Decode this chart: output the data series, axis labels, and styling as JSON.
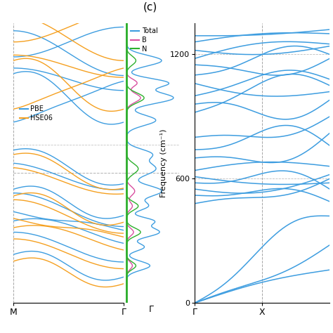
{
  "title_c": "(c)",
  "band_color_pbe": "#3d9de0",
  "band_color_hse": "#f5a020",
  "dos_total_color": "#3d9de0",
  "dos_B_color": "#d94fa0",
  "dos_N_color": "#2db02d",
  "phonon_color": "#3d9de0",
  "legend_labels": [
    "Total",
    "B",
    "N"
  ],
  "pbe_label": "PBE",
  "hse_label": "HSE06",
  "ylabel_phonon": "Frequency (cm⁻¹)",
  "band_xticks": [
    "M",
    "Γ"
  ],
  "phonon_xtick_labels": [
    "Γ",
    "X"
  ],
  "ylim_band": [
    -3.5,
    4.0
  ],
  "ylim_phonon": [
    0,
    1350
  ],
  "phonon_yticks": [
    0,
    600,
    1200
  ],
  "band_fermi": 0.0,
  "background_color": "#ffffff"
}
